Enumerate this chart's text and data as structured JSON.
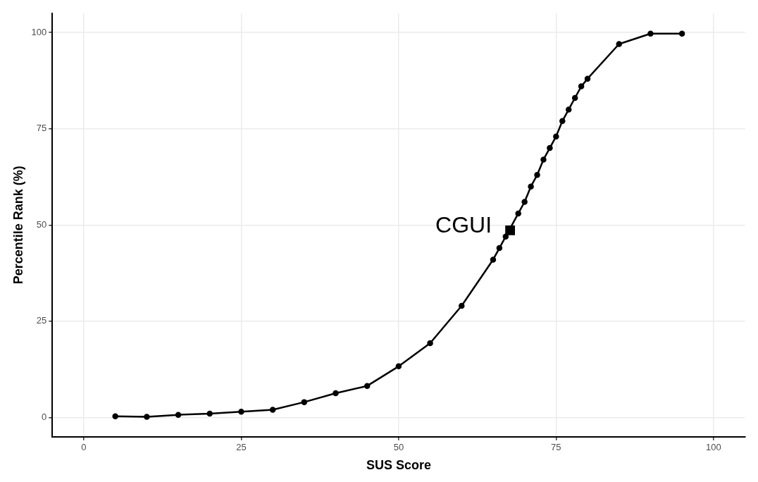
{
  "chart_data": {
    "type": "line",
    "xlabel": "SUS Score",
    "ylabel": "Percentile Rank (%)",
    "xlim": [
      -5,
      105
    ],
    "ylim": [
      -5,
      105
    ],
    "xticks": [
      0,
      25,
      50,
      75,
      100
    ],
    "yticks": [
      0,
      25,
      50,
      75,
      100
    ],
    "grid": true,
    "legend": false,
    "marker": "circle",
    "line_style": "solid",
    "series": [
      {
        "color": "#000000",
        "x": [
          5,
          10,
          15,
          20,
          25,
          30,
          35,
          40,
          45,
          50,
          55,
          60,
          65,
          66,
          67,
          69,
          70,
          71,
          72,
          73,
          74,
          75,
          76,
          77,
          78,
          79,
          80,
          85,
          90,
          95
        ],
        "values": [
          0.3,
          0.2,
          0.7,
          1.0,
          1.5,
          2,
          4,
          6.3,
          8.2,
          13.3,
          19.3,
          29,
          41,
          44,
          47,
          53,
          56,
          60,
          63,
          67,
          70,
          73,
          77,
          80,
          83,
          86,
          88,
          97,
          99.7,
          99.7
        ]
      },
      {
        "name": "CGUI",
        "type": "scatter",
        "marker": "square",
        "color": "#000000",
        "x": [
          67.7
        ],
        "values": [
          48.6
        ]
      }
    ]
  }
}
